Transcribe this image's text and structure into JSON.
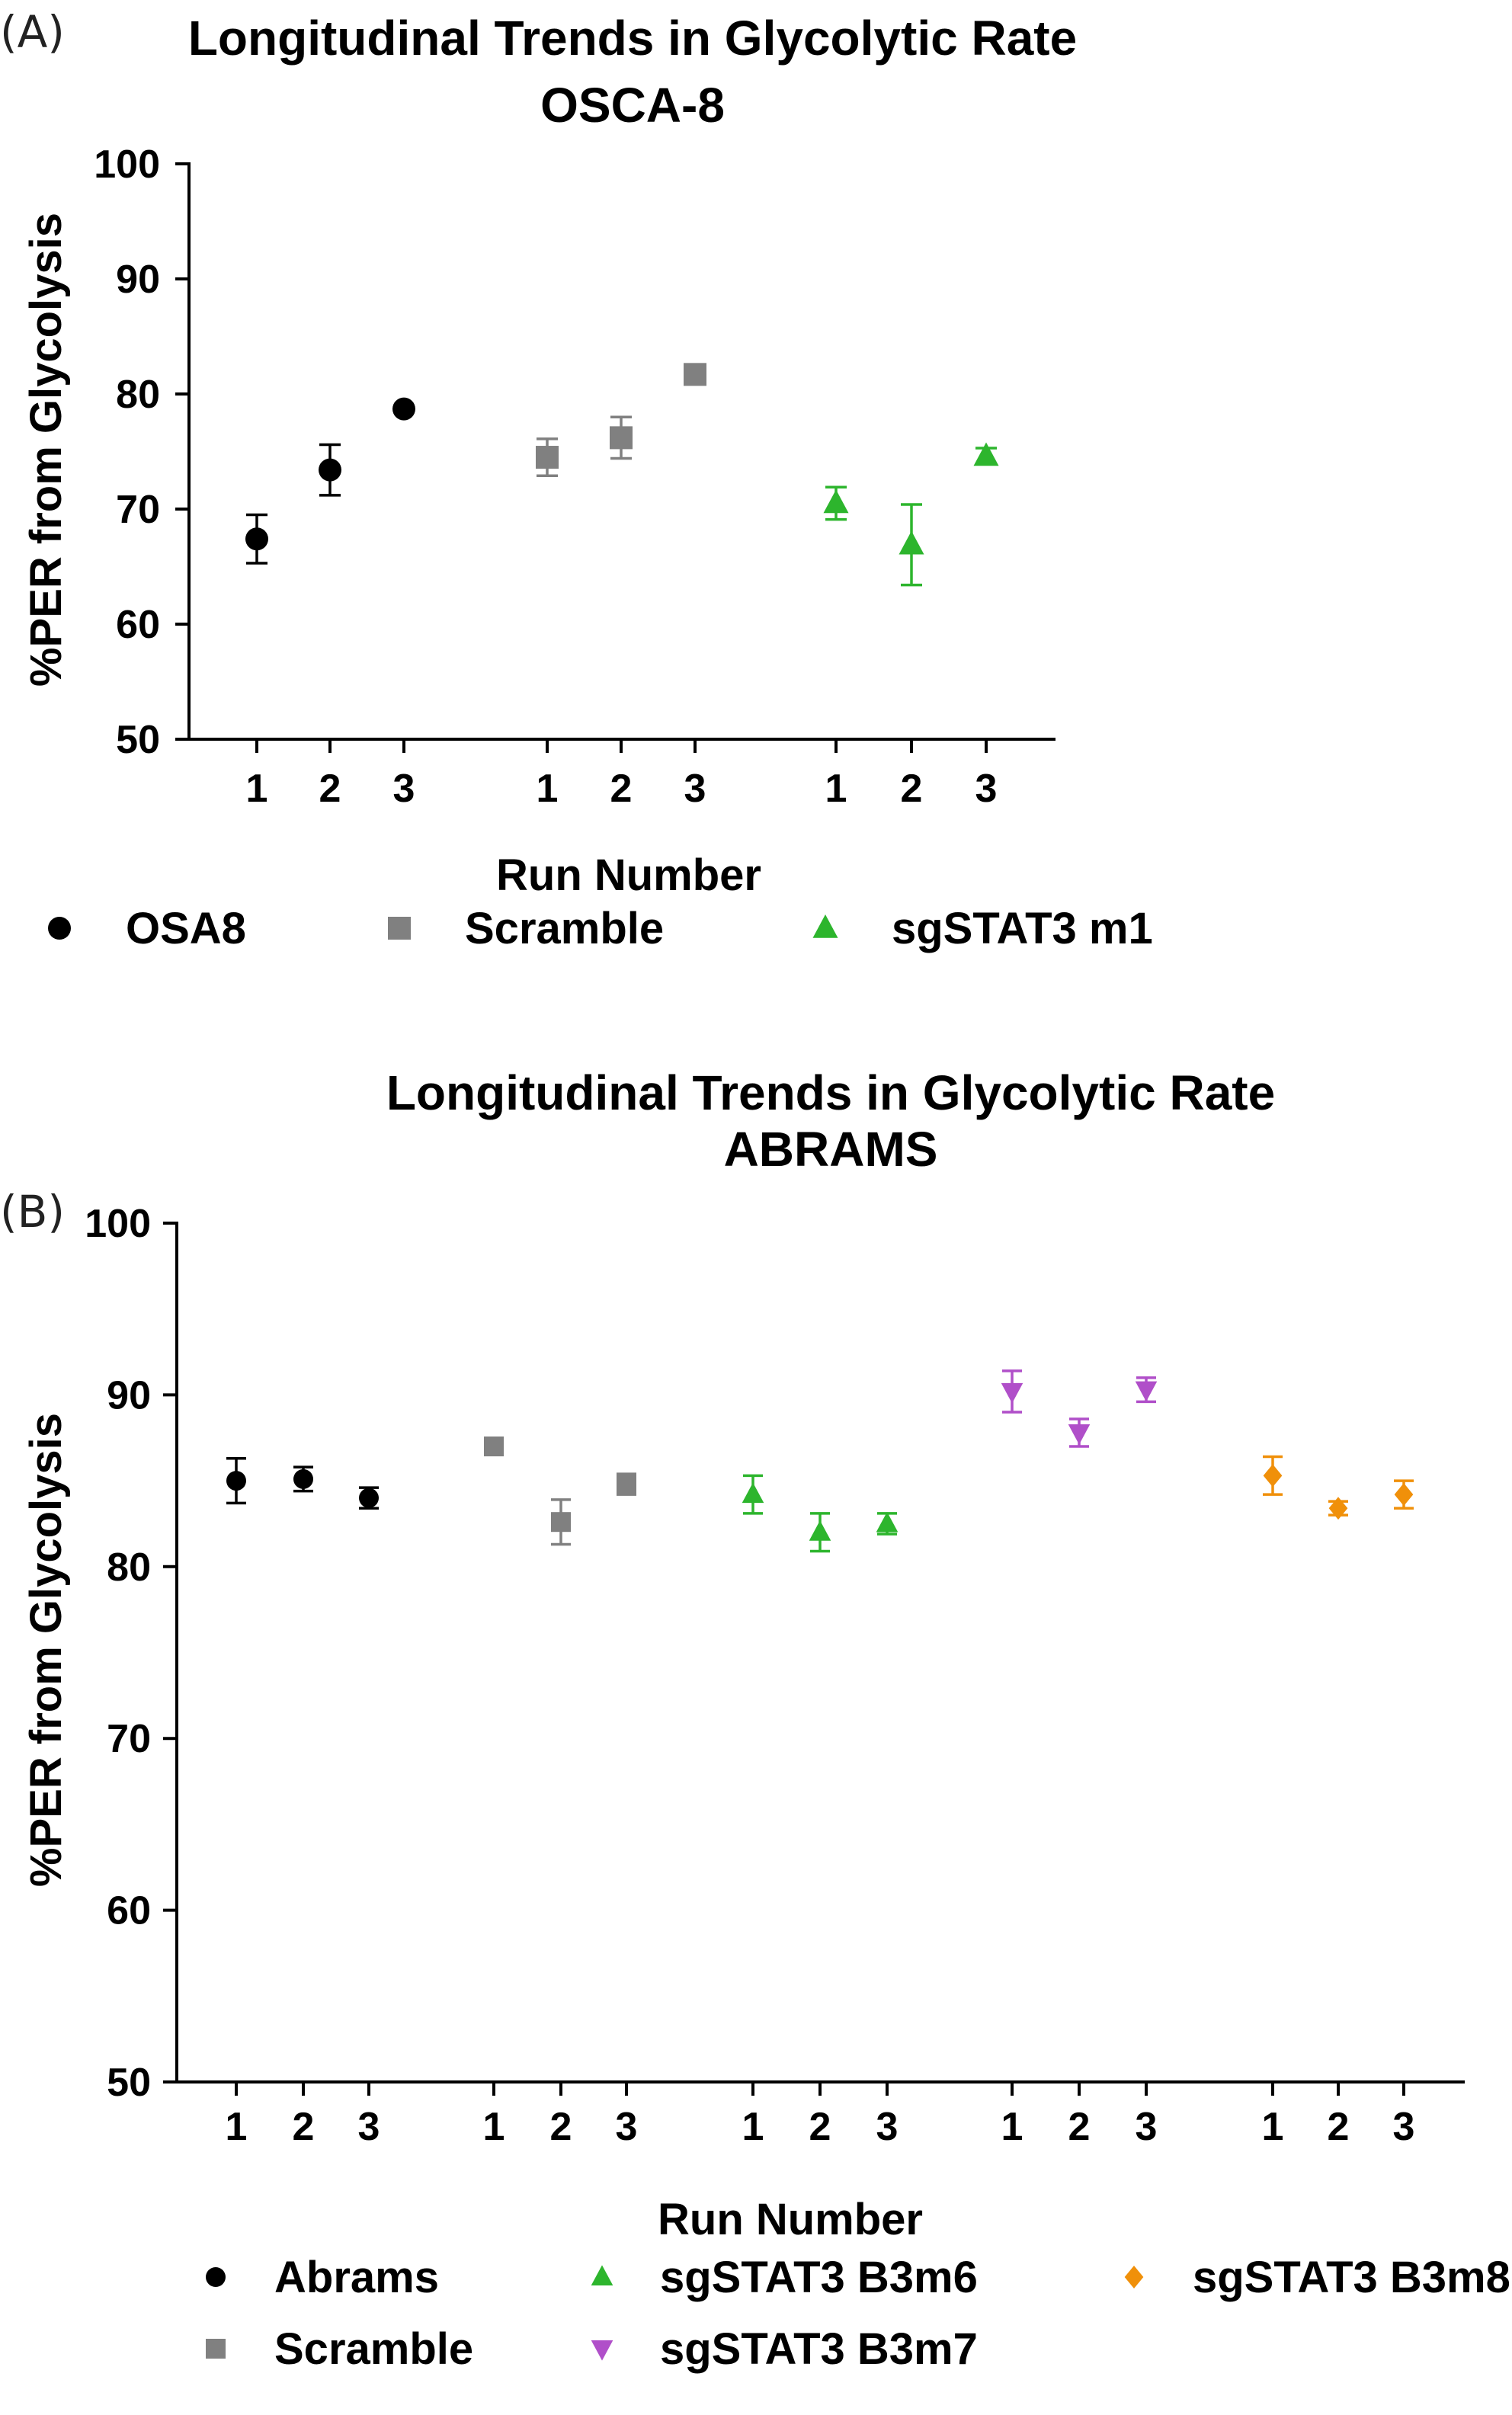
{
  "chart_data": [
    {
      "panel_tag": "(A)",
      "type": "scatter",
      "title": [
        "Longitudinal Trends in Glycolytic Rate",
        "OSCA-8"
      ],
      "xlabel": "Run Number",
      "ylabel": "%PER from Glycolysis",
      "ylim": [
        50,
        100
      ],
      "yticks": [
        50,
        60,
        70,
        80,
        90,
        100
      ],
      "grid": false,
      "legend_position": "bottom",
      "series": [
        {
          "name": "OSA8",
          "marker": "circle",
          "color": "#000000",
          "x": [
            "1",
            "2",
            "3"
          ],
          "values": [
            67.4,
            73.4,
            78.7
          ],
          "errors": [
            2.1,
            2.2,
            0
          ]
        },
        {
          "name": "Scramble",
          "marker": "square",
          "color": "#808080",
          "x": [
            "1",
            "2",
            "3"
          ],
          "values": [
            74.5,
            76.2,
            81.7
          ],
          "errors": [
            1.6,
            1.8,
            0.6
          ]
        },
        {
          "name": "sgSTAT3 m1",
          "marker": "triangle-up",
          "color": "#2db52d",
          "x": [
            "1",
            "2",
            "3"
          ],
          "values": [
            70.5,
            66.9,
            74.6
          ],
          "errors": [
            1.4,
            3.5,
            0.7
          ]
        }
      ]
    },
    {
      "panel_tag": "(B)",
      "type": "scatter",
      "title": [
        "Longitudinal Trends in Glycolytic Rate",
        "ABRAMS"
      ],
      "xlabel": "Run Number",
      "ylabel": "%PER from Glycolysis",
      "ylim": [
        50,
        100
      ],
      "yticks": [
        50,
        60,
        70,
        80,
        90,
        100
      ],
      "grid": false,
      "legend_position": "bottom",
      "series": [
        {
          "name": "Abrams",
          "marker": "circle",
          "color": "#000000",
          "x": [
            "1",
            "2",
            "3"
          ],
          "values": [
            85.0,
            85.1,
            84.0
          ],
          "errors": [
            1.3,
            0.7,
            0.6
          ]
        },
        {
          "name": "Scramble",
          "marker": "square",
          "color": "#808080",
          "x": [
            "1",
            "2",
            "3"
          ],
          "values": [
            87.0,
            82.6,
            84.8
          ],
          "errors": [
            0.3,
            1.3,
            0.6
          ]
        },
        {
          "name": "sgSTAT3 B3m6",
          "marker": "triangle-up",
          "color": "#2db52d",
          "x": [
            "1",
            "2",
            "3"
          ],
          "values": [
            84.2,
            82.0,
            82.5
          ],
          "errors": [
            1.1,
            1.1,
            0.6
          ]
        },
        {
          "name": "sgSTAT3 B3m7",
          "marker": "triangle-down",
          "color": "#b04fc9",
          "x": [
            "1",
            "2",
            "3"
          ],
          "values": [
            90.2,
            87.8,
            90.3
          ],
          "errors": [
            1.2,
            0.8,
            0.7
          ]
        },
        {
          "name": "sgSTAT3 B3m8",
          "marker": "diamond",
          "color": "#f0900a",
          "x": [
            "1",
            "2",
            "3"
          ],
          "values": [
            85.3,
            83.4,
            84.2
          ],
          "errors": [
            1.1,
            0.4,
            0.8
          ]
        }
      ]
    }
  ]
}
